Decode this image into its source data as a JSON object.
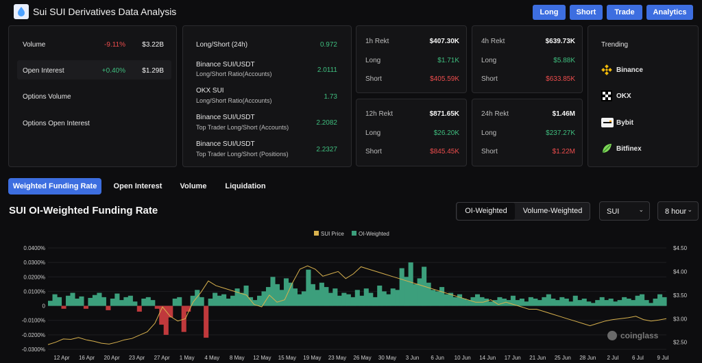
{
  "header": {
    "title": "Sui SUI Derivatives Data Analysis",
    "nav": [
      "Long",
      "Short",
      "Trade",
      "Analytics"
    ],
    "accent": "#3d6ee0"
  },
  "overview": {
    "rows": [
      {
        "label": "Volume",
        "change": "-9.11%",
        "value": "$3.22B",
        "dir": "neg"
      },
      {
        "label": "Open Interest",
        "change": "+0.40%",
        "value": "$1.29B",
        "dir": "pos"
      },
      {
        "label": "Options Volume",
        "change": "",
        "value": "",
        "dir": ""
      },
      {
        "label": "Options Open Interest",
        "change": "",
        "value": "",
        "dir": ""
      }
    ]
  },
  "ratios": {
    "top_label": "Long/Short (24h)",
    "top_value": "0.972",
    "items": [
      {
        "title": "Binance SUI/USDT",
        "sub": "Long/Short Ratio(Accounts)",
        "value": "2.0111"
      },
      {
        "title": "OKX SUI",
        "sub": "Long/Short Ratio(Accounts)",
        "value": "1.73"
      },
      {
        "title": "Binance SUI/USDT",
        "sub": "Top Trader Long/Short (Accounts)",
        "value": "2.2082"
      },
      {
        "title": "Binance SUI/USDT",
        "sub": "Top Trader Long/Short (Positions)",
        "value": "2.2327"
      }
    ]
  },
  "rekt": [
    {
      "title": "1h Rekt",
      "total": "$407.30K",
      "long": "$1.71K",
      "short": "$405.59K"
    },
    {
      "title": "4h Rekt",
      "total": "$639.73K",
      "long": "$5.88K",
      "short": "$633.85K"
    },
    {
      "title": "12h Rekt",
      "total": "$871.65K",
      "long": "$26.20K",
      "short": "$845.45K"
    },
    {
      "title": "24h Rekt",
      "total": "$1.46M",
      "long": "$237.27K",
      "short": "$1.22M"
    }
  ],
  "rekt_labels": {
    "long": "Long",
    "short": "Short"
  },
  "trending": {
    "title": "Trending",
    "items": [
      "Binance",
      "OKX",
      "Bybit",
      "Bitfinex"
    ],
    "icons": [
      "binance-icon",
      "okx-icon",
      "bybit-icon",
      "bitfinex-icon"
    ]
  },
  "tabs": [
    "Weighted Funding Rate",
    "Open Interest",
    "Volume",
    "Liquidation"
  ],
  "section": {
    "title": "SUI OI-Weighted Funding Rate",
    "segments": [
      "OI-Weighted",
      "Volume-Weighted"
    ],
    "coin_select": "SUI",
    "interval_select": "8 hour"
  },
  "watermark": "coinglass",
  "chart_data": {
    "type": "area",
    "legend": [
      "SUI Price",
      "OI-Weighted"
    ],
    "colors": {
      "price": "#d9b24e",
      "funding_pos": "#3c9f7c",
      "funding_neg": "#c0393c"
    },
    "x_labels": [
      "12 Apr",
      "16 Apr",
      "20 Apr",
      "23 Apr",
      "27 Apr",
      "1 May",
      "4 May",
      "8 May",
      "12 May",
      "15 May",
      "19 May",
      "23 May",
      "26 May",
      "30 May",
      "3 Jun",
      "6 Jun",
      "10 Jun",
      "14 Jun",
      "17 Jun",
      "21 Jun",
      "25 Jun",
      "28 Jun",
      "2 Jul",
      "6 Jul",
      "9 Jul"
    ],
    "y_left_labels": [
      "0.0400%",
      "0.0300%",
      "0.0200%",
      "0.0100%",
      "0",
      "-0.0100%",
      "-0.0200%",
      "-0.0300%"
    ],
    "y_left_range": [
      -0.03,
      0.04
    ],
    "y_right_labels": [
      "$4.50",
      "$4.00",
      "$3.50",
      "$3.00",
      "$2.50"
    ],
    "y_right_range": [
      2.35,
      4.5
    ],
    "funding_pct": [
      0.0035,
      0.008,
      0.006,
      -0.002,
      0.007,
      0.009,
      0.005,
      0.0065,
      -0.002,
      0.0055,
      0.0075,
      0.009,
      0.006,
      -0.003,
      0.005,
      0.0085,
      0.004,
      0.006,
      0.007,
      0.003,
      -0.004,
      0.005,
      0.006,
      0.004,
      -0.002,
      -0.013,
      -0.02,
      -0.008,
      0.005,
      0.006,
      -0.018,
      -0.004,
      0.007,
      0.011,
      0.006,
      -0.022,
      0.005,
      0.009,
      0.007,
      0.008,
      0.005,
      0.007,
      0.012,
      0.009,
      0.014,
      0.006,
      0.004,
      0.007,
      0.01,
      0.013,
      0.02,
      0.015,
      0.011,
      0.019,
      0.016,
      0.012,
      0.008,
      0.01,
      0.025,
      0.015,
      0.011,
      0.016,
      0.013,
      0.009,
      0.012,
      0.007,
      0.009,
      0.008,
      0.006,
      0.011,
      0.007,
      0.012,
      0.009,
      0.006,
      0.014,
      0.01,
      0.008,
      0.012,
      0.011,
      0.026,
      0.02,
      0.03,
      0.015,
      0.019,
      0.027,
      0.016,
      0.011,
      0.01,
      0.013,
      0.008,
      0.009,
      0.006,
      0.008,
      0.005,
      0.004,
      0.006,
      0.008,
      0.006,
      0.005,
      0.003,
      0.004,
      0.006,
      0.005,
      0.004,
      0.007,
      0.004,
      0.005,
      0.003,
      0.006,
      0.005,
      0.004,
      0.006,
      0.008,
      0.005,
      0.004,
      0.006,
      0.005,
      0.003,
      0.007,
      0.004,
      0.005,
      0.003,
      0.002,
      0.004,
      0.006,
      0.004,
      0.005,
      0.003,
      0.004,
      0.006,
      0.005,
      0.004,
      0.007,
      0.008,
      0.004,
      0.002,
      0.005,
      0.008,
      0.006
    ],
    "price": [
      2.45,
      2.5,
      2.57,
      2.56,
      2.6,
      2.55,
      2.52,
      2.48,
      2.46,
      2.5,
      2.55,
      2.58,
      2.65,
      2.72,
      2.9,
      3.25,
      3.05,
      2.95,
      3.0,
      3.35,
      3.55,
      3.8,
      3.7,
      3.65,
      3.6,
      3.55,
      3.5,
      3.3,
      3.25,
      3.5,
      3.35,
      3.4,
      3.75,
      4.05,
      4.12,
      4.05,
      3.9,
      3.95,
      4.0,
      3.85,
      3.95,
      4.1,
      4.05,
      4.0,
      3.95,
      3.9,
      3.85,
      3.8,
      3.75,
      3.7,
      3.65,
      3.6,
      3.55,
      3.5,
      3.45,
      3.4,
      3.35,
      3.35,
      3.4,
      3.3,
      3.35,
      3.3,
      3.25,
      3.2,
      3.2,
      3.15,
      3.1,
      3.05,
      3.0,
      2.95,
      2.9,
      2.85,
      2.9,
      2.95,
      2.98,
      3.0,
      3.02,
      3.05,
      2.98,
      2.95,
      2.97,
      3.0
    ]
  }
}
